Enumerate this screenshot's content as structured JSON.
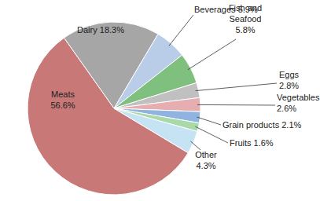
{
  "chart_data": {
    "type": "pie",
    "categories": [
      "Meats",
      "Dairy",
      "Beverages",
      "Fish and Seafood",
      "Eggs",
      "Vegetables",
      "Grain products",
      "Fruits",
      "Other"
    ],
    "values": [
      56.6,
      18.3,
      5.9,
      5.8,
      2.8,
      2.6,
      2.1,
      1.6,
      4.3
    ],
    "value_labels": [
      "56.6%",
      "18.3%",
      "5.9%",
      "5.8%",
      "2.8%",
      "2.6%",
      "2.1%",
      "1.6%",
      "4.3%"
    ],
    "colors": [
      "#c97878",
      "#a6a6a6",
      "#b9cde8",
      "#7fc07f",
      "#c0c0c0",
      "#e6aeb0",
      "#8fb4e0",
      "#a9d9a9",
      "#c6e3f4"
    ],
    "data_labels": true
  }
}
